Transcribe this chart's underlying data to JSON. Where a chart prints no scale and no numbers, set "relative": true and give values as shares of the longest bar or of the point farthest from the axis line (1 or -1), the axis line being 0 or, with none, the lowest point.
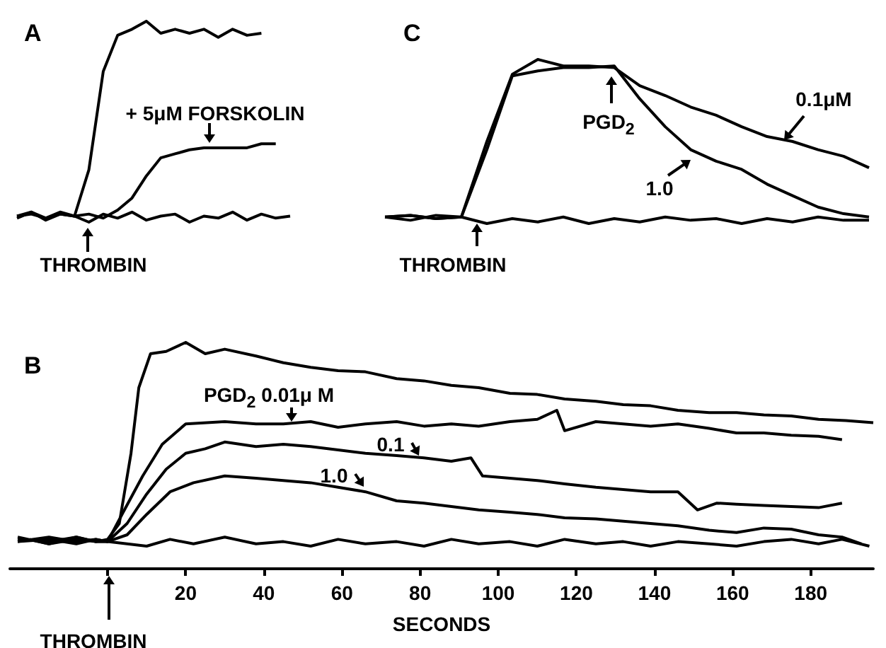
{
  "chart_data": [
    {
      "type": "line",
      "title": "A",
      "relative": true,
      "marker": "none",
      "categories": [
        null,
        null,
        null,
        null,
        null,
        null,
        null,
        null,
        null,
        null,
        null,
        null,
        null,
        null,
        null,
        null,
        null,
        null,
        null,
        null
      ],
      "series": [
        {
          "color": "#000000",
          "values": [
            0.03,
            0.05,
            0.02,
            0.04,
            0.03,
            0.26,
            0.75,
            0.93,
            0.96,
            1.0,
            0.94,
            0.96,
            0.94,
            0.96,
            0.92,
            0.96,
            0.93,
            0.94,
            null,
            null
          ]
        },
        {
          "color": "#000000",
          "values": [
            0.03,
            0.04,
            0.02,
            0.05,
            0.03,
            0.04,
            0.02,
            0.06,
            0.12,
            0.23,
            0.32,
            0.34,
            0.36,
            0.37,
            0.37,
            0.37,
            0.37,
            0.39,
            0.39,
            null
          ]
        },
        {
          "color": "#000000",
          "values": [
            0.02,
            0.05,
            0.01,
            0.04,
            0.03,
            0.0,
            0.04,
            0.02,
            0.05,
            0.01,
            0.03,
            0.04,
            0.0,
            0.03,
            0.02,
            0.05,
            0.01,
            0.04,
            0.02,
            0.03
          ]
        }
      ],
      "annotations": [
        "+ 5μM FORSKOLIN",
        "THROMBIN"
      ]
    },
    {
      "type": "line",
      "title": "C",
      "relative": true,
      "marker": "none",
      "categories": [
        null,
        null,
        null,
        null,
        null,
        null,
        null,
        null,
        null,
        null,
        null,
        null,
        null,
        null,
        null,
        null,
        null,
        null,
        null,
        null
      ],
      "series": [
        {
          "color": "#000000",
          "values": [
            0.04,
            0.05,
            0.03,
            0.04,
            0.5,
            0.91,
            1.0,
            0.96,
            0.96,
            0.95,
            0.84,
            0.78,
            0.71,
            0.66,
            0.59,
            0.53,
            0.5,
            0.45,
            0.41,
            0.34
          ]
        },
        {
          "color": "#000000",
          "values": [
            0.04,
            0.05,
            0.03,
            0.04,
            0.45,
            0.9,
            0.93,
            0.95,
            0.95,
            0.96,
            0.76,
            0.59,
            0.45,
            0.38,
            0.33,
            0.24,
            0.17,
            0.1,
            0.06,
            0.04
          ]
        },
        {
          "color": "#000000",
          "values": [
            0.04,
            0.02,
            0.05,
            0.04,
            0.0,
            0.03,
            0.01,
            0.04,
            0.0,
            0.03,
            0.01,
            0.04,
            0.02,
            0.03,
            0.0,
            0.03,
            0.01,
            0.04,
            0.02,
            0.02
          ]
        }
      ],
      "annotations": [
        "PGD$_{2}$",
        "1.0",
        "0.1μM",
        "THROMBIN"
      ]
    },
    {
      "type": "line",
      "title": "B",
      "relative": true,
      "marker": "none",
      "xlabel": "SECONDS",
      "xlim": [
        -25,
        196
      ],
      "xticks": [
        {
          "value": 0,
          "label": null
        },
        20,
        40,
        60,
        80,
        100,
        120,
        140,
        160,
        180
      ],
      "series": [
        {
          "color": "#000000",
          "x": [
            -23,
            -15,
            -8,
            -3,
            0,
            3,
            6,
            8,
            11,
            15,
            20,
            25,
            30,
            38,
            45,
            52,
            59,
            66,
            74,
            81,
            88,
            95,
            103,
            110,
            117,
            125,
            132,
            139,
            146,
            154,
            161,
            168,
            175,
            182,
            189,
            196
          ],
          "values": [
            0.14,
            0.11,
            0.13,
            0.12,
            0.13,
            0.2,
            0.51,
            0.8,
            0.95,
            0.96,
            1.0,
            0.95,
            0.97,
            0.94,
            0.91,
            0.89,
            0.875,
            0.87,
            0.84,
            0.83,
            0.81,
            0.8,
            0.775,
            0.77,
            0.75,
            0.74,
            0.725,
            0.72,
            0.7,
            0.69,
            0.69,
            0.68,
            0.675,
            0.66,
            0.655,
            0.645
          ]
        },
        {
          "color": "#000000",
          "x": [
            -23,
            -15,
            -8,
            -3,
            0,
            4,
            9,
            14,
            20,
            30,
            38,
            45,
            52,
            59,
            66,
            74,
            81,
            88,
            95,
            103,
            110,
            115,
            117,
            125,
            132,
            139,
            146,
            154,
            161,
            168,
            175,
            182,
            188
          ],
          "values": [
            0.12,
            0.14,
            0.12,
            0.13,
            0.12,
            0.25,
            0.41,
            0.55,
            0.64,
            0.65,
            0.64,
            0.64,
            0.65,
            0.625,
            0.64,
            0.65,
            0.63,
            0.64,
            0.63,
            0.65,
            0.66,
            0.7,
            0.61,
            0.65,
            0.64,
            0.63,
            0.64,
            0.62,
            0.6,
            0.6,
            0.59,
            0.585,
            0.57
          ]
        },
        {
          "color": "#000000",
          "x": [
            -23,
            -15,
            -8,
            -3,
            0,
            5,
            10,
            15,
            20,
            25,
            30,
            38,
            45,
            52,
            59,
            66,
            74,
            81,
            88,
            93,
            96,
            103,
            110,
            117,
            125,
            132,
            139,
            146,
            151,
            156,
            161,
            168,
            175,
            182,
            188
          ],
          "values": [
            0.13,
            0.12,
            0.14,
            0.12,
            0.12,
            0.2,
            0.33,
            0.44,
            0.51,
            0.53,
            0.56,
            0.54,
            0.55,
            0.54,
            0.525,
            0.51,
            0.5,
            0.49,
            0.475,
            0.49,
            0.41,
            0.4,
            0.39,
            0.375,
            0.36,
            0.35,
            0.34,
            0.34,
            0.26,
            0.29,
            0.285,
            0.28,
            0.275,
            0.27,
            0.29
          ]
        },
        {
          "color": "#000000",
          "x": [
            -23,
            -15,
            -8,
            -3,
            0,
            5,
            10,
            16,
            22,
            30,
            38,
            45,
            52,
            59,
            66,
            74,
            81,
            88,
            95,
            103,
            110,
            117,
            125,
            132,
            139,
            146,
            154,
            161,
            168,
            175,
            182,
            188,
            193
          ],
          "values": [
            0.12,
            0.13,
            0.11,
            0.13,
            0.12,
            0.15,
            0.24,
            0.34,
            0.38,
            0.41,
            0.4,
            0.39,
            0.38,
            0.36,
            0.34,
            0.3,
            0.29,
            0.275,
            0.26,
            0.25,
            0.24,
            0.225,
            0.22,
            0.21,
            0.2,
            0.19,
            0.17,
            0.16,
            0.18,
            0.175,
            0.15,
            0.14,
            0.11
          ]
        },
        {
          "color": "#000000",
          "x": [
            -20,
            -15,
            -8,
            -3,
            0,
            5,
            10,
            16,
            22,
            30,
            38,
            45,
            52,
            59,
            66,
            74,
            81,
            88,
            95,
            103,
            110,
            117,
            125,
            132,
            139,
            146,
            154,
            161,
            168,
            175,
            182,
            188,
            195
          ],
          "values": [
            0.13,
            0.11,
            0.14,
            0.12,
            0.12,
            0.11,
            0.1,
            0.13,
            0.11,
            0.14,
            0.11,
            0.12,
            0.1,
            0.13,
            0.11,
            0.12,
            0.1,
            0.13,
            0.11,
            0.12,
            0.1,
            0.13,
            0.11,
            0.12,
            0.1,
            0.12,
            0.11,
            0.1,
            0.12,
            0.13,
            0.11,
            0.13,
            0.1
          ]
        }
      ],
      "annotations": [
        "PGD$_{2}$ 0.01μ M",
        "0.1",
        "1.0",
        "THROMBIN"
      ]
    }
  ]
}
